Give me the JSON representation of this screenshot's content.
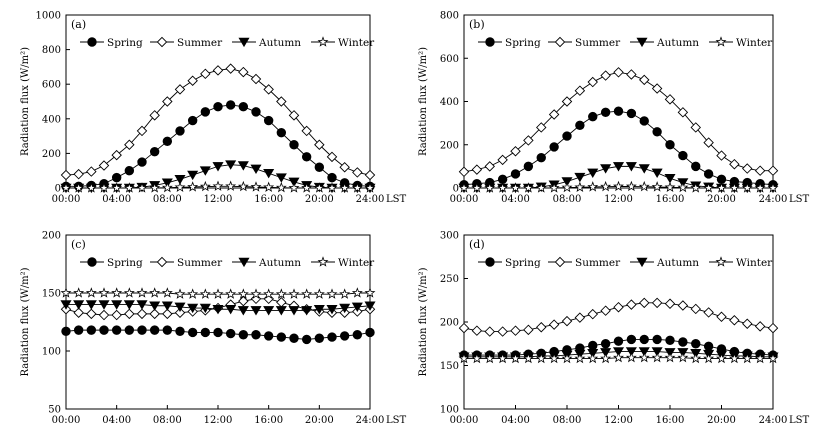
{
  "figure": {
    "background": "#ffffff",
    "ink": "#000000"
  },
  "chart_data": [
    {
      "type": "line",
      "panel": "(a)",
      "xlabel": "LST",
      "ylabel": "Radiation flux (W/m²)",
      "ylim": [
        0,
        1000
      ],
      "yticks": [
        0,
        200,
        400,
        600,
        800,
        1000
      ],
      "xlim": [
        0,
        24
      ],
      "xtick_values": [
        0,
        4,
        8,
        12,
        16,
        20,
        24
      ],
      "xtick_labels": [
        "00:00",
        "04:00",
        "08:00",
        "12:00",
        "16:00",
        "20:00",
        "24:00"
      ],
      "legend_position": "top",
      "x": [
        0,
        1,
        2,
        3,
        4,
        5,
        6,
        7,
        8,
        9,
        10,
        11,
        12,
        13,
        14,
        15,
        16,
        17,
        18,
        19,
        20,
        21,
        22,
        23,
        24
      ],
      "series": [
        {
          "name": "Spring",
          "marker": "circle",
          "values": [
            10,
            10,
            15,
            25,
            60,
            100,
            150,
            210,
            270,
            330,
            390,
            440,
            470,
            480,
            470,
            440,
            390,
            320,
            250,
            180,
            120,
            60,
            30,
            15,
            10
          ]
        },
        {
          "name": "Summer",
          "marker": "diamond",
          "values": [
            75,
            80,
            95,
            130,
            190,
            250,
            330,
            420,
            500,
            570,
            620,
            660,
            680,
            690,
            670,
            630,
            570,
            500,
            420,
            330,
            250,
            180,
            120,
            90,
            75
          ]
        },
        {
          "name": "Autumn",
          "marker": "triangle-down",
          "values": [
            0,
            0,
            0,
            0,
            0,
            0,
            5,
            15,
            30,
            50,
            75,
            100,
            125,
            135,
            130,
            110,
            85,
            60,
            35,
            15,
            5,
            0,
            0,
            0,
            0
          ]
        },
        {
          "name": "Winter",
          "marker": "star",
          "values": [
            0,
            0,
            0,
            0,
            0,
            0,
            0,
            0,
            2,
            4,
            6,
            8,
            10,
            10,
            8,
            6,
            4,
            2,
            0,
            0,
            0,
            0,
            0,
            0,
            0
          ]
        }
      ]
    },
    {
      "type": "line",
      "panel": "(b)",
      "xlabel": "LST",
      "ylabel": "Radiation flux (W/m²)",
      "ylim": [
        0,
        800
      ],
      "yticks": [
        0,
        200,
        400,
        600,
        800
      ],
      "xlim": [
        0,
        24
      ],
      "xtick_values": [
        0,
        4,
        8,
        12,
        16,
        20,
        24
      ],
      "xtick_labels": [
        "00:00",
        "04:00",
        "08:00",
        "12:00",
        "16:00",
        "20:00",
        "24:00"
      ],
      "legend_position": "top",
      "x": [
        0,
        1,
        2,
        3,
        4,
        5,
        6,
        7,
        8,
        9,
        10,
        11,
        12,
        13,
        14,
        15,
        16,
        17,
        18,
        19,
        20,
        21,
        22,
        23,
        24
      ],
      "series": [
        {
          "name": "Spring",
          "marker": "circle",
          "values": [
            15,
            20,
            25,
            40,
            65,
            100,
            140,
            190,
            240,
            290,
            330,
            350,
            355,
            345,
            310,
            260,
            200,
            150,
            100,
            65,
            40,
            30,
            25,
            20,
            15
          ]
        },
        {
          "name": "Summer",
          "marker": "diamond",
          "values": [
            75,
            85,
            100,
            130,
            170,
            220,
            280,
            340,
            400,
            450,
            490,
            520,
            535,
            525,
            500,
            460,
            410,
            350,
            280,
            210,
            150,
            110,
            90,
            80,
            80
          ]
        },
        {
          "name": "Autumn",
          "marker": "triangle-down",
          "values": [
            0,
            0,
            0,
            0,
            0,
            0,
            5,
            15,
            30,
            50,
            70,
            90,
            100,
            100,
            90,
            70,
            45,
            25,
            10,
            5,
            0,
            0,
            0,
            0,
            0
          ]
        },
        {
          "name": "Winter",
          "marker": "star",
          "values": [
            0,
            0,
            0,
            0,
            0,
            0,
            0,
            0,
            2,
            3,
            5,
            6,
            7,
            7,
            6,
            5,
            3,
            2,
            0,
            0,
            0,
            0,
            0,
            0,
            0
          ]
        }
      ]
    },
    {
      "type": "line",
      "panel": "(c)",
      "xlabel": "LST",
      "ylabel": "Radiation flux (W/m²)",
      "ylim": [
        50,
        200
      ],
      "yticks": [
        50,
        100,
        150,
        200
      ],
      "xlim": [
        0,
        24
      ],
      "xtick_values": [
        0,
        4,
        8,
        12,
        16,
        20,
        24
      ],
      "xtick_labels": [
        "00:00",
        "04:00",
        "08:00",
        "12:00",
        "16:00",
        "20:00",
        "24:00"
      ],
      "legend_position": "top",
      "x": [
        0,
        1,
        2,
        3,
        4,
        5,
        6,
        7,
        8,
        9,
        10,
        11,
        12,
        13,
        14,
        15,
        16,
        17,
        18,
        19,
        20,
        21,
        22,
        23,
        24
      ],
      "series": [
        {
          "name": "Spring",
          "marker": "circle",
          "values": [
            117,
            118,
            118,
            118,
            118,
            118,
            118,
            118,
            118,
            117,
            116,
            116,
            116,
            115,
            114,
            114,
            113,
            112,
            111,
            110,
            111,
            112,
            113,
            114,
            116
          ]
        },
        {
          "name": "Summer",
          "marker": "diamond",
          "values": [
            136,
            133,
            132,
            131,
            131,
            132,
            132,
            132,
            132,
            133,
            134,
            135,
            137,
            140,
            143,
            145,
            145,
            142,
            139,
            136,
            134,
            133,
            133,
            134,
            136
          ]
        },
        {
          "name": "Autumn",
          "marker": "triangle-down",
          "values": [
            140,
            140,
            140,
            140,
            140,
            140,
            140,
            139,
            139,
            138,
            137,
            137,
            136,
            136,
            135,
            135,
            135,
            135,
            135,
            135,
            136,
            136,
            137,
            138,
            139
          ]
        },
        {
          "name": "Winter",
          "marker": "star",
          "values": [
            150,
            150,
            150,
            150,
            150,
            150,
            150,
            150,
            150,
            149,
            149,
            149,
            149,
            149,
            149,
            149,
            149,
            149,
            149,
            149,
            149,
            149,
            149,
            150,
            150
          ]
        }
      ]
    },
    {
      "type": "line",
      "panel": "(d)",
      "xlabel": "LST",
      "ylabel": "Radiation flux (W/m²)",
      "ylim": [
        100,
        300
      ],
      "yticks": [
        100,
        150,
        200,
        250,
        300
      ],
      "xlim": [
        0,
        24
      ],
      "xtick_values": [
        0,
        4,
        8,
        12,
        16,
        20,
        24
      ],
      "xtick_labels": [
        "00:00",
        "04:00",
        "08:00",
        "12:00",
        "16:00",
        "20:00",
        "24:00"
      ],
      "legend_position": "top",
      "x": [
        0,
        1,
        2,
        3,
        4,
        5,
        6,
        7,
        8,
        9,
        10,
        11,
        12,
        13,
        14,
        15,
        16,
        17,
        18,
        19,
        20,
        21,
        22,
        23,
        24
      ],
      "series": [
        {
          "name": "Spring",
          "marker": "circle",
          "values": [
            162,
            162,
            162,
            162,
            162,
            163,
            164,
            166,
            168,
            170,
            173,
            175,
            178,
            180,
            180,
            180,
            179,
            177,
            175,
            172,
            169,
            166,
            164,
            163,
            162
          ]
        },
        {
          "name": "Summer",
          "marker": "diamond",
          "values": [
            193,
            190,
            189,
            189,
            190,
            191,
            194,
            197,
            201,
            205,
            209,
            213,
            217,
            220,
            222,
            222,
            221,
            219,
            215,
            211,
            206,
            202,
            198,
            195,
            193
          ]
        },
        {
          "name": "Autumn",
          "marker": "triangle-down",
          "values": [
            160,
            160,
            160,
            160,
            160,
            160,
            161,
            161,
            162,
            163,
            164,
            165,
            166,
            166,
            166,
            166,
            165,
            165,
            164,
            163,
            162,
            161,
            161,
            160,
            160
          ]
        },
        {
          "name": "Winter",
          "marker": "star",
          "values": [
            158,
            158,
            158,
            158,
            158,
            158,
            158,
            158,
            158,
            158,
            158,
            158,
            159,
            159,
            159,
            159,
            159,
            159,
            158,
            158,
            158,
            158,
            158,
            158,
            158
          ]
        }
      ]
    }
  ]
}
